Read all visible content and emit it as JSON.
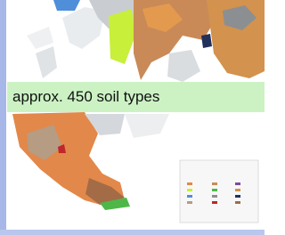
{
  "caption": "approx. 450 soil types"
}
